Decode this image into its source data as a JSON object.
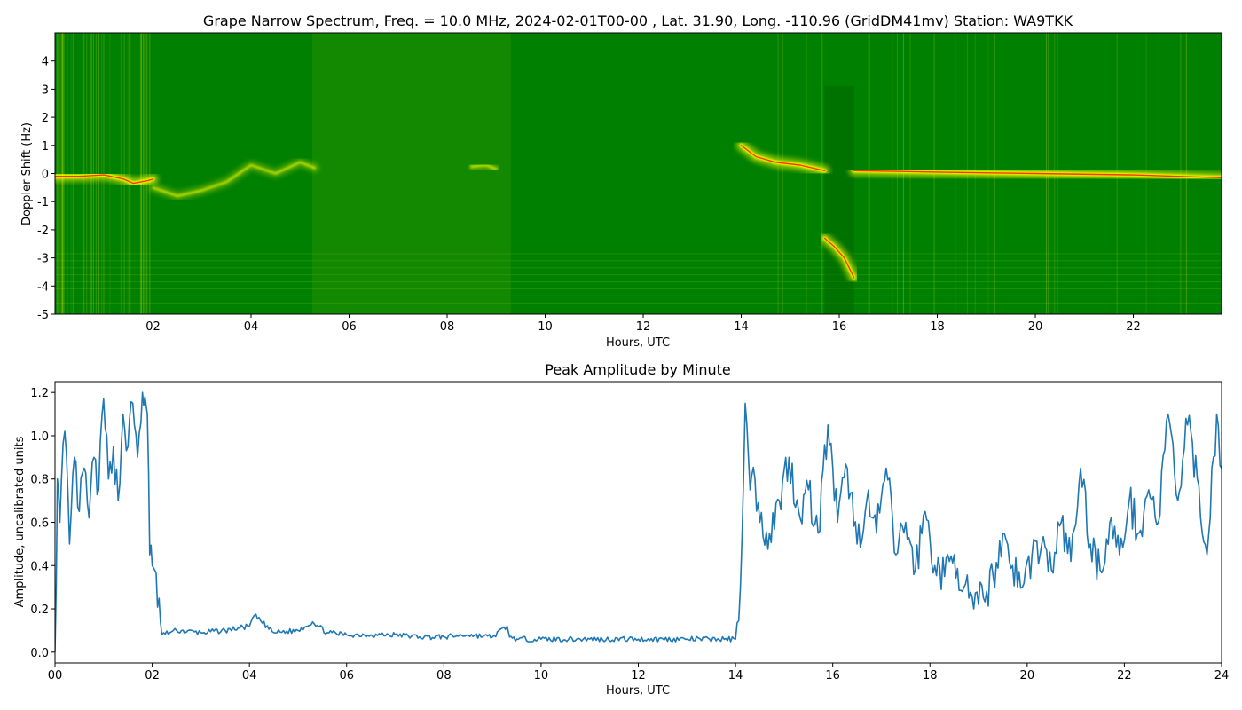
{
  "chart_data": [
    {
      "type": "heatmap",
      "title": "Grape Narrow Spectrum, Freq. = 10.0 MHz, 2024-02-01T00-00 , Lat.  31.90, Long. -110.96 (GridDM41mv) Station: WA9TKK",
      "xlabel": "Hours, UTC",
      "ylabel": "Doppler Shift (Hz)",
      "xlim": [
        0,
        23.8
      ],
      "ylim": [
        -5,
        5
      ],
      "x_tick_labels": [
        "02",
        "04",
        "06",
        "08",
        "10",
        "12",
        "14",
        "16",
        "18",
        "20",
        "22"
      ],
      "y_tick_labels": [
        "4",
        "3",
        "2",
        "1",
        "0",
        "-1",
        "-2",
        "-3",
        "-4",
        "-5"
      ],
      "colors": {
        "background": "#008000",
        "mid": "#ffff00",
        "peak": "#ff2000"
      },
      "segments": [
        {
          "start": 0.0,
          "end": 2.0,
          "doppler": [
            [
              0.0,
              -0.1
            ],
            [
              0.5,
              -0.1
            ],
            [
              1.0,
              -0.05
            ],
            [
              1.4,
              -0.2
            ],
            [
              1.6,
              -0.35
            ],
            [
              1.9,
              -0.25
            ],
            [
              2.0,
              -0.2
            ]
          ],
          "strength": "strong"
        },
        {
          "start": 2.0,
          "end": 5.3,
          "doppler": [
            [
              2.0,
              -0.5
            ],
            [
              2.5,
              -0.8
            ],
            [
              3.0,
              -0.6
            ],
            [
              3.5,
              -0.3
            ],
            [
              4.0,
              0.3
            ],
            [
              4.5,
              0.0
            ],
            [
              5.0,
              0.4
            ],
            [
              5.3,
              0.2
            ]
          ],
          "strength": "weak"
        },
        {
          "start": 8.5,
          "end": 9.0,
          "doppler": [
            [
              8.5,
              0.25
            ],
            [
              8.8,
              0.3
            ],
            [
              9.0,
              0.15
            ]
          ],
          "strength": "weak"
        },
        {
          "start": 14.0,
          "end": 15.7,
          "doppler": [
            [
              14.0,
              1.0
            ],
            [
              14.3,
              0.6
            ],
            [
              14.7,
              0.4
            ],
            [
              15.2,
              0.3
            ],
            [
              15.7,
              0.1
            ]
          ],
          "strength": "strong"
        },
        {
          "start": 15.7,
          "end": 16.3,
          "doppler": [
            [
              15.7,
              -2.3
            ],
            [
              15.9,
              -2.6
            ],
            [
              16.1,
              -3.0
            ],
            [
              16.3,
              -3.7
            ]
          ],
          "strength": "strong"
        },
        {
          "start": 16.3,
          "end": 23.8,
          "doppler": [
            [
              16.3,
              0.1
            ],
            [
              18.0,
              0.05
            ],
            [
              20.0,
              0.0
            ],
            [
              22.0,
              -0.05
            ],
            [
              23.8,
              -0.15
            ]
          ],
          "strength": "strong"
        }
      ]
    },
    {
      "type": "line",
      "title": "Peak Amplitude by Minute",
      "xlabel": "Hours, UTC",
      "ylabel": "Amplitude, uncalibrated units",
      "xlim": [
        0,
        24
      ],
      "ylim": [
        -0.05,
        1.25
      ],
      "x_tick_labels": [
        "00",
        "02",
        "04",
        "06",
        "08",
        "10",
        "12",
        "14",
        "16",
        "18",
        "20",
        "22",
        "24"
      ],
      "y_tick_labels": [
        "0.0",
        "0.2",
        "0.4",
        "0.6",
        "0.8",
        "1.0",
        "1.2"
      ],
      "color": "#1f77b4",
      "x": [
        0,
        0.05,
        0.1,
        0.2,
        0.3,
        0.4,
        0.5,
        0.6,
        0.7,
        0.8,
        0.9,
        1.0,
        1.1,
        1.2,
        1.3,
        1.4,
        1.5,
        1.6,
        1.7,
        1.8,
        1.85,
        1.9,
        1.95,
        2.0,
        2.05,
        2.2,
        2.5,
        3.0,
        3.5,
        4.0,
        4.1,
        4.5,
        5.0,
        5.3,
        5.6,
        6.0,
        6.5,
        7.0,
        7.5,
        8.0,
        8.5,
        9.0,
        9.3,
        9.35,
        9.5,
        10.0,
        11.0,
        12.0,
        13.0,
        14.0,
        14.1,
        14.2,
        14.3,
        14.4,
        14.5,
        14.7,
        14.9,
        15.1,
        15.3,
        15.5,
        15.7,
        15.9,
        16.1,
        16.3,
        16.5,
        16.7,
        16.9,
        17.1,
        17.3,
        17.5,
        17.7,
        17.9,
        18.1,
        18.3,
        18.5,
        18.7,
        18.9,
        19.1,
        19.3,
        19.5,
        19.7,
        19.9,
        20.1,
        20.3,
        20.5,
        20.7,
        20.9,
        21.1,
        21.3,
        21.5,
        21.7,
        21.9,
        22.1,
        22.3,
        22.5,
        22.7,
        22.9,
        23.1,
        23.3,
        23.5,
        23.7,
        23.9,
        24.0
      ],
      "values": [
        0.0,
        0.8,
        0.6,
        1.02,
        0.5,
        0.9,
        0.65,
        0.85,
        0.62,
        0.9,
        0.75,
        1.17,
        0.8,
        0.95,
        0.7,
        1.1,
        0.95,
        1.15,
        0.9,
        1.2,
        1.18,
        1.1,
        0.45,
        0.4,
        0.38,
        0.08,
        0.1,
        0.09,
        0.1,
        0.12,
        0.17,
        0.09,
        0.1,
        0.14,
        0.09,
        0.08,
        0.08,
        0.08,
        0.07,
        0.07,
        0.08,
        0.07,
        0.12,
        0.07,
        0.06,
        0.06,
        0.06,
        0.06,
        0.06,
        0.06,
        0.3,
        1.15,
        0.75,
        0.8,
        0.6,
        0.55,
        0.7,
        0.9,
        0.65,
        0.75,
        0.55,
        1.05,
        0.6,
        0.85,
        0.5,
        0.7,
        0.55,
        0.85,
        0.45,
        0.6,
        0.38,
        0.65,
        0.4,
        0.35,
        0.45,
        0.3,
        0.2,
        0.25,
        0.35,
        0.55,
        0.4,
        0.3,
        0.45,
        0.5,
        0.38,
        0.6,
        0.42,
        0.85,
        0.5,
        0.38,
        0.6,
        0.45,
        0.7,
        0.55,
        0.75,
        0.6,
        1.1,
        0.7,
        1.05,
        0.8,
        0.45,
        1.1,
        0.85
      ]
    }
  ]
}
